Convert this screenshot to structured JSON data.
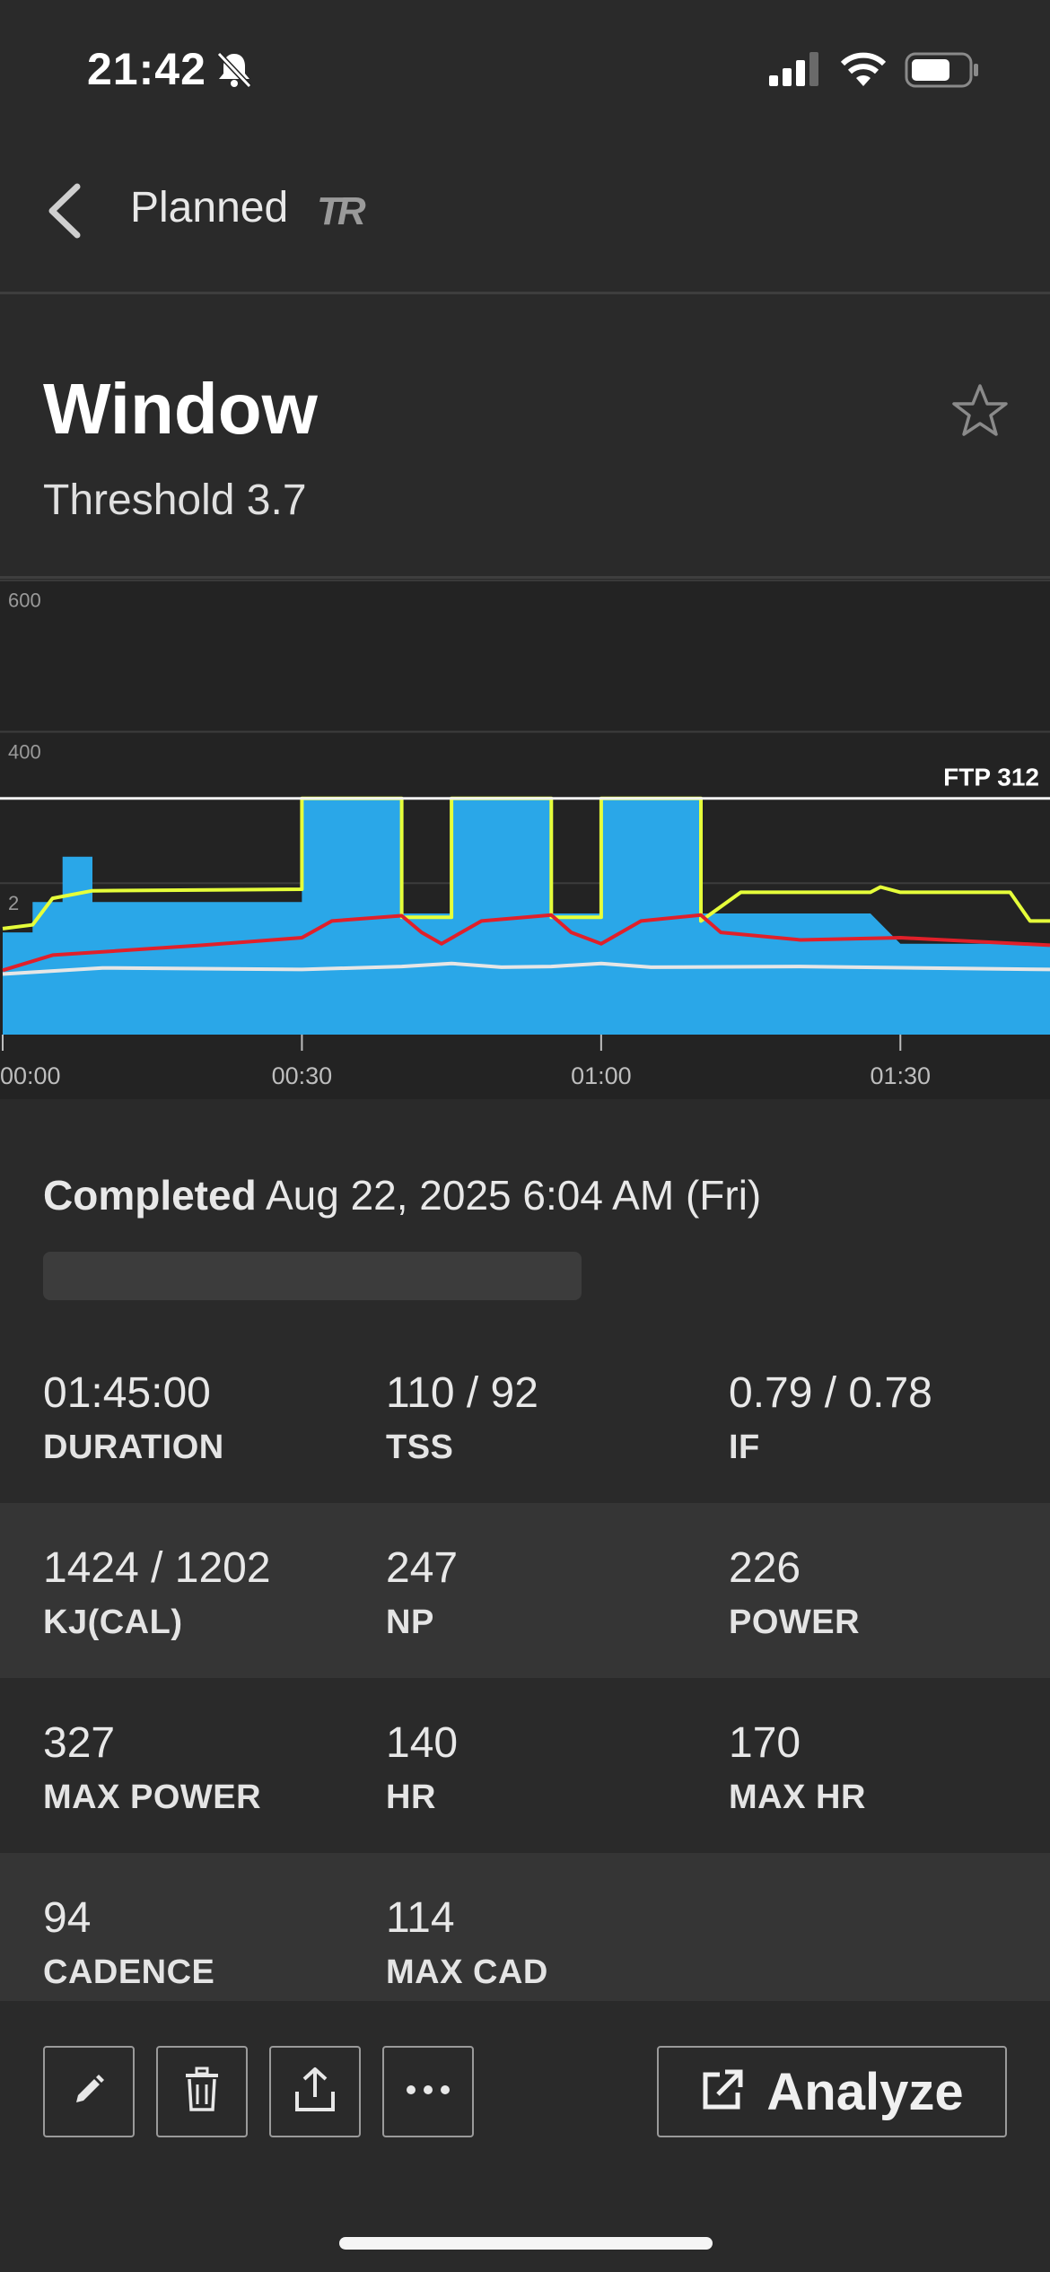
{
  "status_bar": {
    "time": "21:42"
  },
  "nav": {
    "title": "Planned",
    "logo_text": "TR"
  },
  "workout": {
    "title": "Window",
    "subtitle": "Threshold 3.7"
  },
  "chart_data": {
    "type": "area",
    "y_ticks": [
      "600",
      "400",
      "2"
    ],
    "x_ticks": [
      "00:00",
      "00:30",
      "01:00",
      "01:30"
    ],
    "ftp_label": "FTP 312",
    "ftp_value": 312,
    "ylim": [
      0,
      600
    ],
    "x_unit": "minutes",
    "xlim": [
      0,
      105
    ],
    "grid": true,
    "series": [
      {
        "kind": "area",
        "color": "#2aa7e8",
        "points": [
          [
            0,
            135
          ],
          [
            3,
            135
          ],
          [
            3,
            175
          ],
          [
            6,
            175
          ],
          [
            6,
            235
          ],
          [
            9,
            235
          ],
          [
            9,
            175
          ],
          [
            30,
            175
          ],
          [
            30,
            312
          ],
          [
            40,
            312
          ],
          [
            40,
            160
          ],
          [
            45,
            160
          ],
          [
            45,
            312
          ],
          [
            55,
            312
          ],
          [
            55,
            160
          ],
          [
            60,
            160
          ],
          [
            60,
            312
          ],
          [
            70,
            312
          ],
          [
            70,
            160
          ],
          [
            87,
            160
          ],
          [
            87,
            160
          ],
          [
            90,
            120
          ],
          [
            105,
            120
          ]
        ]
      },
      {
        "kind": "line",
        "color": "#e6ff3a",
        "points": [
          [
            0,
            140
          ],
          [
            3,
            145
          ],
          [
            5,
            180
          ],
          [
            9,
            190
          ],
          [
            30,
            192
          ],
          [
            30,
            312
          ],
          [
            40,
            312
          ],
          [
            40,
            155
          ],
          [
            45,
            155
          ],
          [
            45,
            312
          ],
          [
            55,
            312
          ],
          [
            55,
            155
          ],
          [
            60,
            155
          ],
          [
            60,
            312
          ],
          [
            70,
            312
          ],
          [
            70,
            150
          ],
          [
            74,
            188
          ],
          [
            87,
            188
          ],
          [
            88,
            195
          ],
          [
            90,
            188
          ],
          [
            101,
            188
          ],
          [
            103,
            150
          ],
          [
            105,
            150
          ]
        ]
      },
      {
        "kind": "line",
        "color": "#e0202a",
        "points": [
          [
            0,
            85
          ],
          [
            5,
            105
          ],
          [
            20,
            118
          ],
          [
            30,
            128
          ],
          [
            33,
            150
          ],
          [
            40,
            157
          ],
          [
            42,
            135
          ],
          [
            44,
            120
          ],
          [
            48,
            150
          ],
          [
            55,
            158
          ],
          [
            57,
            135
          ],
          [
            60,
            120
          ],
          [
            64,
            150
          ],
          [
            70,
            158
          ],
          [
            72,
            135
          ],
          [
            80,
            125
          ],
          [
            90,
            128
          ],
          [
            105,
            118
          ]
        ]
      },
      {
        "kind": "line",
        "color": "#e6e6e6",
        "points": [
          [
            0,
            80
          ],
          [
            10,
            88
          ],
          [
            30,
            86
          ],
          [
            40,
            90
          ],
          [
            45,
            94
          ],
          [
            50,
            89
          ],
          [
            55,
            90
          ],
          [
            60,
            94
          ],
          [
            65,
            89
          ],
          [
            80,
            90
          ],
          [
            105,
            86
          ]
        ]
      }
    ]
  },
  "activity": {
    "completed_label": "Completed",
    "completed_date": "Aug 22, 2025 6:04 AM (Fri)"
  },
  "stats": [
    [
      {
        "value": "01:45:00",
        "label": "DURATION"
      },
      {
        "value": "110 / 92",
        "label": "TSS"
      },
      {
        "value": "0.79 / 0.78",
        "label": "IF"
      }
    ],
    [
      {
        "value": "1424 / 1202",
        "label": "KJ(CAL)"
      },
      {
        "value": "247",
        "label": "NP"
      },
      {
        "value": "226",
        "label": "POWER"
      }
    ],
    [
      {
        "value": "327",
        "label": "MAX POWER"
      },
      {
        "value": "140",
        "label": "HR"
      },
      {
        "value": "170",
        "label": "MAX HR"
      }
    ],
    [
      {
        "value": "94",
        "label": "CADENCE"
      },
      {
        "value": "114",
        "label": "MAX CAD"
      }
    ]
  ],
  "toolbar": {
    "analyze_label": "Analyze"
  }
}
